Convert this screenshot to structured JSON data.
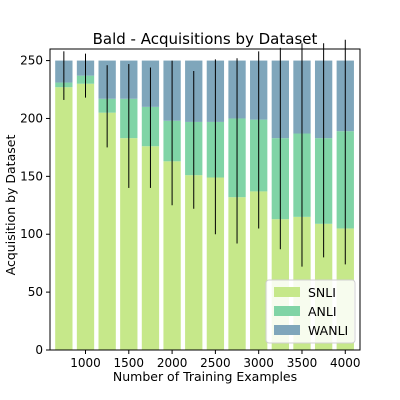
{
  "chart_data": {
    "type": "bar",
    "stacked": true,
    "title": "Bald - Acquisitions by Dataset",
    "xlabel": "Number of Training Examples",
    "ylabel": "Acquisition by Dataset",
    "xlim": [
      590,
      4170
    ],
    "ylim": [
      0,
      260
    ],
    "xticks": [
      1000,
      1500,
      2000,
      2500,
      3000,
      3500,
      4000
    ],
    "yticks": [
      0,
      50,
      100,
      150,
      200,
      250
    ],
    "grid": false,
    "legend_position": "lower-right",
    "x": [
      750,
      1000,
      1250,
      1500,
      1750,
      2000,
      2250,
      2500,
      2750,
      3000,
      3250,
      3500,
      3750,
      4000
    ],
    "series": [
      {
        "name": "SNLI",
        "color": "#c6e88a",
        "values": [
          227,
          230,
          205,
          183,
          176,
          163,
          151,
          149,
          132,
          137,
          113,
          115,
          109,
          105
        ]
      },
      {
        "name": "ANLI",
        "color": "#80d4a6",
        "values": [
          4,
          7,
          12,
          34,
          34,
          35,
          46,
          48,
          68,
          62,
          70,
          72,
          74,
          84
        ]
      },
      {
        "name": "WANLI",
        "color": "#7fa6bb",
        "values": [
          19,
          13,
          33,
          33,
          40,
          52,
          53,
          53,
          50,
          51,
          67,
          63,
          67,
          61
        ]
      }
    ],
    "error_bars": {
      "anchor": "top of SNLI segment",
      "low": [
        216,
        218,
        175,
        140,
        140,
        125,
        122,
        100,
        92,
        105,
        87,
        72,
        80,
        74
      ],
      "high": [
        258,
        256,
        246,
        247,
        244,
        250,
        241,
        251,
        252,
        258,
        261,
        265,
        265,
        268
      ]
    }
  }
}
